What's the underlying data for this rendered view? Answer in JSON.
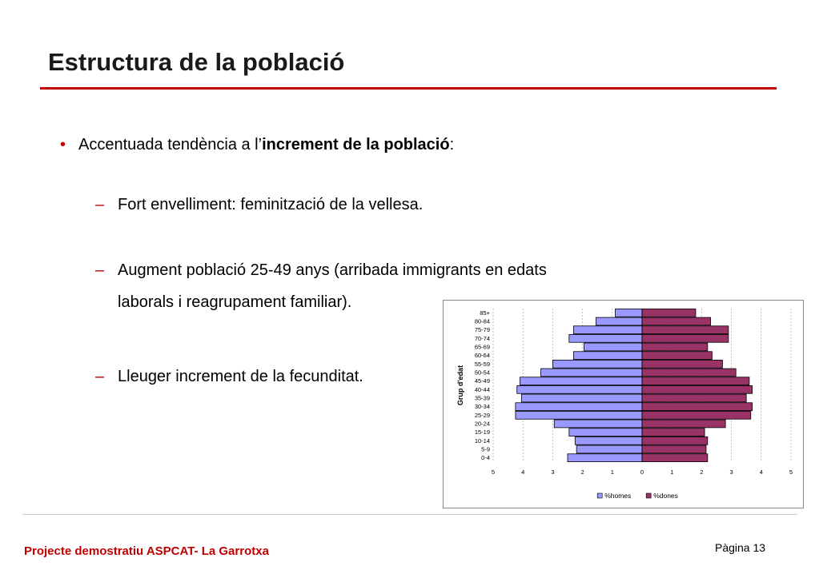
{
  "slide": {
    "title": "Estructura de la població",
    "bullet": {
      "prefix": "Accentuada tendència a l’",
      "bold": "increment de la població",
      "suffix": ":"
    },
    "subbullets": [
      "Fort envelliment: feminització de la vellesa.",
      "Augment població 25-49 anys (arribada immigrants en edats",
      "laborals i reagrupament familiar).",
      "Lleuger increment de la fecunditat."
    ],
    "bullet_marker": "•",
    "dash_marker": "–"
  },
  "footer": {
    "left": "Projecte demostratiu ASPCAT- La Garrotxa",
    "right": "Pàgina 13"
  },
  "colors": {
    "accent": "#c00000",
    "homes": "#9999ff",
    "dones": "#993366"
  },
  "chart_data": {
    "type": "bar",
    "orientation": "horizontal-population-pyramid",
    "ylabel": "Grup d'edat",
    "xlabel": "",
    "categories": [
      "85+",
      "80-84",
      "75-79",
      "70-74",
      "65-69",
      "60-64",
      "55-59",
      "50-54",
      "45-49",
      "40-44",
      "35-39",
      "30-34",
      "25-29",
      "20-24",
      "15-19",
      "10-14",
      "5-9",
      "0-4"
    ],
    "series": [
      {
        "name": "%homes",
        "values": [
          0.9,
          1.55,
          2.3,
          2.45,
          1.95,
          2.3,
          3.0,
          3.4,
          4.1,
          4.2,
          4.05,
          4.25,
          4.25,
          2.95,
          2.45,
          2.25,
          2.2,
          2.5
        ]
      },
      {
        "name": "%dones",
        "values": [
          1.8,
          2.3,
          2.9,
          2.9,
          2.2,
          2.35,
          2.7,
          3.15,
          3.6,
          3.7,
          3.5,
          3.7,
          3.65,
          2.8,
          2.1,
          2.2,
          2.15,
          2.2
        ]
      }
    ],
    "xticks": [
      "5",
      "4",
      "3",
      "2",
      "1",
      "0",
      "1",
      "2",
      "3",
      "4",
      "5"
    ],
    "xlim": [
      -5,
      5
    ],
    "grid": "vertical-dashed",
    "legend_position": "bottom"
  }
}
